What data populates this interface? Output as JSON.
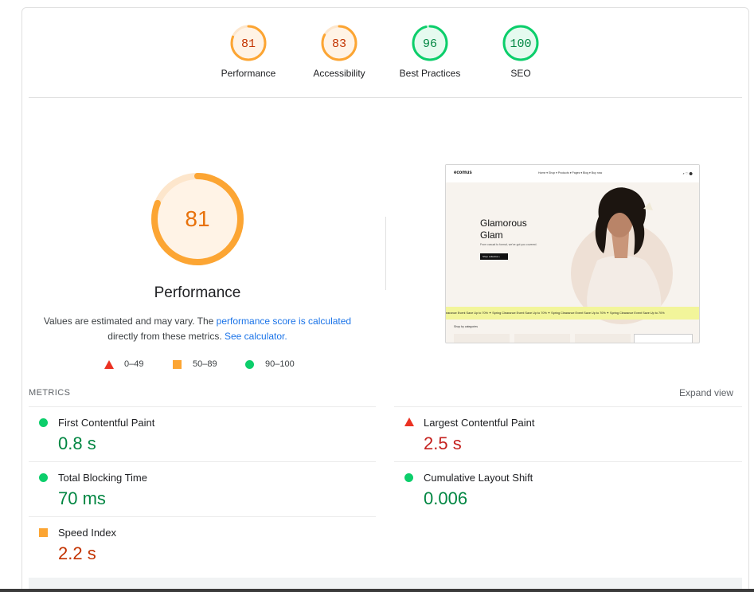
{
  "categories": [
    {
      "label": "Performance",
      "score": "81",
      "value": 0.81,
      "status": "average"
    },
    {
      "label": "Accessibility",
      "score": "83",
      "value": 0.83,
      "status": "average"
    },
    {
      "label": "Best Practices",
      "score": "96",
      "value": 0.96,
      "status": "pass"
    },
    {
      "label": "SEO",
      "score": "100",
      "value": 1.0,
      "status": "pass"
    }
  ],
  "main": {
    "score": "81",
    "value": 0.81,
    "title": "Performance",
    "desc_prefix": "Values are estimated and may vary. The ",
    "desc_link1": "performance score is calculated",
    "desc_middle": "directly from these metrics. ",
    "desc_link2": "See calculator."
  },
  "legend": {
    "fail": "0–49",
    "average": "50–89",
    "pass": "90–100"
  },
  "screenshot": {
    "logo": "ecomus",
    "nav_links": "Home ▾   Shop ▾   Products ▾   Pages ▾   Blog ▾   Buy now",
    "heading_line1": "Glamorous",
    "heading_line2": "Glam",
    "subtext": "From casual to formal, we've got you covered.",
    "button": "Shop collection ›",
    "marquee": "earance Event Save Up to 70%   ✦ Spring Clearance Event Save Up to 70%   ✦ Spring Clearance Event Save Up to 70%   ✦ Spring Clearance Event Save Up to 70%",
    "category_label": "Shop by categories"
  },
  "metrics": {
    "heading": "METRICS",
    "expand_label": "Expand view",
    "items": [
      {
        "name": "First Contentful Paint",
        "value": "0.8 s",
        "status": "pass"
      },
      {
        "name": "Largest Contentful Paint",
        "value": "2.5 s",
        "status": "fail"
      },
      {
        "name": "Total Blocking Time",
        "value": "70 ms",
        "status": "pass"
      },
      {
        "name": "Cumulative Layout Shift",
        "value": "0.006",
        "status": "pass"
      },
      {
        "name": "Speed Index",
        "value": "2.2 s",
        "status": "average"
      }
    ]
  },
  "colors": {
    "pass": "#0cce6b",
    "pass_text": "#018642",
    "pass_bg": "#e5faef",
    "average": "#fca533",
    "average_text": "#c33300",
    "average_bg": "#fff3e6",
    "fail": "#eb3223",
    "fail_text": "#c5221f",
    "link": "#1a73e8"
  }
}
